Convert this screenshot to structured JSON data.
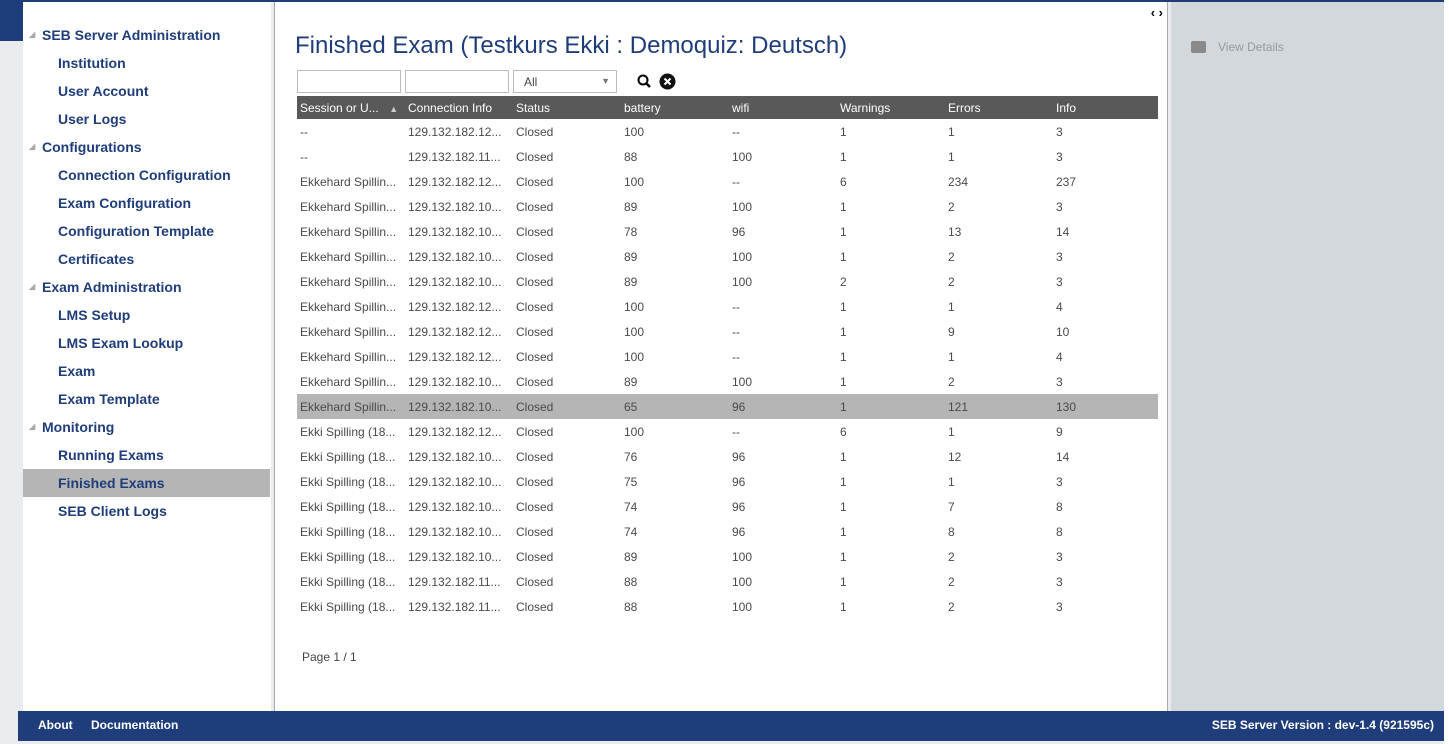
{
  "sidebar": {
    "groups": [
      {
        "label": "SEB Server Administration",
        "items": [
          "Institution",
          "User Account",
          "User Logs"
        ]
      },
      {
        "label": "Configurations",
        "items": [
          "Connection Configuration",
          "Exam Configuration",
          "Configuration Template",
          "Certificates"
        ]
      },
      {
        "label": "Exam Administration",
        "items": [
          "LMS Setup",
          "LMS Exam Lookup",
          "Exam",
          "Exam Template"
        ]
      },
      {
        "label": "Monitoring",
        "items": [
          "Running Exams",
          "Finished Exams",
          "SEB Client Logs"
        ]
      }
    ],
    "active": "Finished Exams"
  },
  "main": {
    "toggle": "‹ ›",
    "title": "Finished Exam (Testkurs Ekki : Demoquiz: Deutsch)",
    "filters": {
      "name": "",
      "info": "",
      "status": "All"
    },
    "columns": [
      "Session or U...",
      "Connection Info",
      "Status",
      "battery",
      "wifi",
      "Warnings",
      "Errors",
      "Info"
    ],
    "sort_column": "Session or U...",
    "rows": [
      [
        "--",
        "129.132.182.12...",
        "Closed",
        "100",
        "--",
        "1",
        "1",
        "3"
      ],
      [
        "--",
        "129.132.182.11...",
        "Closed",
        "88",
        "100",
        "1",
        "1",
        "3"
      ],
      [
        "Ekkehard Spillin...",
        "129.132.182.12...",
        "Closed",
        "100",
        "--",
        "6",
        "234",
        "237"
      ],
      [
        "Ekkehard Spillin...",
        "129.132.182.10...",
        "Closed",
        "89",
        "100",
        "1",
        "2",
        "3"
      ],
      [
        "Ekkehard Spillin...",
        "129.132.182.10...",
        "Closed",
        "78",
        "96",
        "1",
        "13",
        "14"
      ],
      [
        "Ekkehard Spillin...",
        "129.132.182.10...",
        "Closed",
        "89",
        "100",
        "1",
        "2",
        "3"
      ],
      [
        "Ekkehard Spillin...",
        "129.132.182.10...",
        "Closed",
        "89",
        "100",
        "2",
        "2",
        "3"
      ],
      [
        "Ekkehard Spillin...",
        "129.132.182.12...",
        "Closed",
        "100",
        "--",
        "1",
        "1",
        "4"
      ],
      [
        "Ekkehard Spillin...",
        "129.132.182.12...",
        "Closed",
        "100",
        "--",
        "1",
        "9",
        "10"
      ],
      [
        "Ekkehard Spillin...",
        "129.132.182.12...",
        "Closed",
        "100",
        "--",
        "1",
        "1",
        "4"
      ],
      [
        "Ekkehard Spillin...",
        "129.132.182.10...",
        "Closed",
        "89",
        "100",
        "1",
        "2",
        "3"
      ],
      [
        "Ekkehard Spillin...",
        "129.132.182.10...",
        "Closed",
        "65",
        "96",
        "1",
        "121",
        "130"
      ],
      [
        "Ekki Spilling (18...",
        "129.132.182.12...",
        "Closed",
        "100",
        "--",
        "6",
        "1",
        "9"
      ],
      [
        "Ekki Spilling (18...",
        "129.132.182.10...",
        "Closed",
        "76",
        "96",
        "1",
        "12",
        "14"
      ],
      [
        "Ekki Spilling (18...",
        "129.132.182.10...",
        "Closed",
        "75",
        "96",
        "1",
        "1",
        "3"
      ],
      [
        "Ekki Spilling (18...",
        "129.132.182.10...",
        "Closed",
        "74",
        "96",
        "1",
        "7",
        "8"
      ],
      [
        "Ekki Spilling (18...",
        "129.132.182.10...",
        "Closed",
        "74",
        "96",
        "1",
        "8",
        "8"
      ],
      [
        "Ekki Spilling (18...",
        "129.132.182.10...",
        "Closed",
        "89",
        "100",
        "1",
        "2",
        "3"
      ],
      [
        "Ekki Spilling (18...",
        "129.132.182.11...",
        "Closed",
        "88",
        "100",
        "1",
        "2",
        "3"
      ],
      [
        "Ekki Spilling (18...",
        "129.132.182.11...",
        "Closed",
        "88",
        "100",
        "1",
        "2",
        "3"
      ]
    ],
    "selected_row": 11,
    "pager": "Page 1 / 1"
  },
  "right": {
    "view_details": "View Details"
  },
  "footer": {
    "about": "About",
    "documentation": "Documentation",
    "version": "SEB Server Version : dev-1.4 (921595c)"
  },
  "colors": {
    "brand": "#1f3d7a",
    "header": "#595959",
    "selected": "#b5b5b5",
    "panel": "#d3d8dc"
  }
}
